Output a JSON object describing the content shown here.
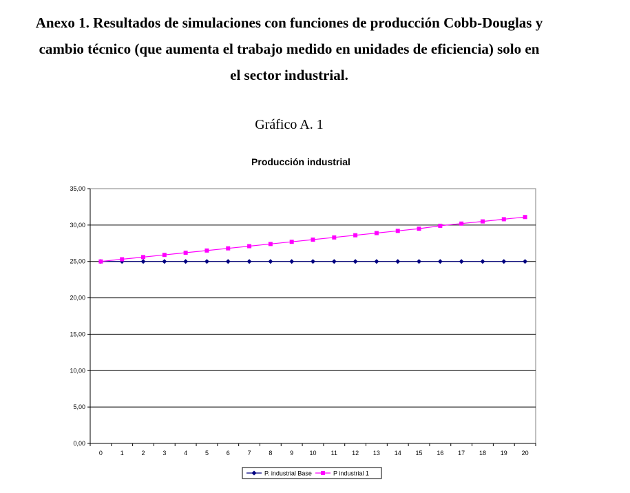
{
  "document": {
    "heading_lines": [
      "Anexo 1. Resultados de simulaciones con funciones de producción Cobb-Douglas y",
      "cambio técnico (que aumenta el trabajo medido en unidades de eficiencia) solo en",
      "el sector industrial."
    ],
    "figure_label": "Gráfico A. 1"
  },
  "chart_data": {
    "type": "line",
    "title": "Producción industrial",
    "xlabel": "",
    "ylabel": "",
    "x": [
      0,
      1,
      2,
      3,
      4,
      5,
      6,
      7,
      8,
      9,
      10,
      11,
      12,
      13,
      14,
      15,
      16,
      17,
      18,
      19,
      20
    ],
    "ylim": [
      0,
      35
    ],
    "yticks": [
      "0,00",
      "5,00",
      "10,00",
      "15,00",
      "20,00",
      "25,00",
      "30,00",
      "35,00"
    ],
    "grid": "horizontal",
    "legend_position": "bottom",
    "series": [
      {
        "name": "P. industrial Base",
        "color": "#000080",
        "marker": "diamond",
        "values": [
          25,
          25,
          25,
          25,
          25,
          25,
          25,
          25,
          25,
          25,
          25,
          25,
          25,
          25,
          25,
          25,
          25,
          25,
          25,
          25,
          25
        ]
      },
      {
        "name": "P industrial 1",
        "color": "#ff00ff",
        "marker": "square",
        "values": [
          25.0,
          25.3,
          25.6,
          25.9,
          26.2,
          26.5,
          26.8,
          27.1,
          27.4,
          27.7,
          28.0,
          28.3,
          28.6,
          28.9,
          29.2,
          29.5,
          29.9,
          30.2,
          30.5,
          30.8,
          31.1
        ]
      }
    ]
  }
}
